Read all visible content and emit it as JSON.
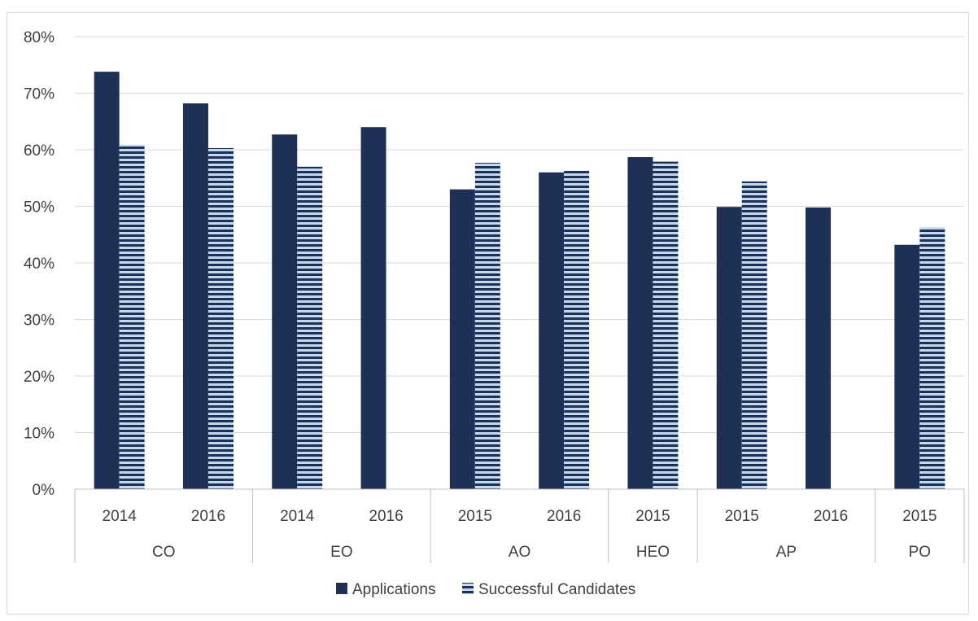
{
  "chart_data": {
    "type": "bar",
    "grades": [
      {
        "name": "CO",
        "years": [
          "2014",
          "2016"
        ]
      },
      {
        "name": "EO",
        "years": [
          "2014",
          "2016"
        ]
      },
      {
        "name": "AO",
        "years": [
          "2015",
          "2016"
        ]
      },
      {
        "name": "HEO",
        "years": [
          "2015"
        ]
      },
      {
        "name": "AP",
        "years": [
          "2015",
          "2016"
        ]
      },
      {
        "name": "PO",
        "years": [
          "2015"
        ]
      }
    ],
    "series": [
      {
        "name": "Applications",
        "color": "#1f3057",
        "values": [
          73.8,
          68.2,
          62.7,
          64.0,
          53.0,
          56.0,
          58.7,
          49.9,
          49.8,
          43.2
        ]
      },
      {
        "name": "Successful Candidates",
        "color": "#1f3057",
        "pattern": "horizontal-stripes-light-blue",
        "values": [
          60.9,
          60.3,
          57.0,
          null,
          57.7,
          56.3,
          57.9,
          54.4,
          null,
          46.3
        ]
      }
    ],
    "ylim": [
      0,
      80
    ],
    "ytick_step": 10,
    "ytick_format": "percent",
    "grid": true,
    "legend_position": "bottom",
    "title": "",
    "xlabel": "",
    "ylabel": ""
  }
}
